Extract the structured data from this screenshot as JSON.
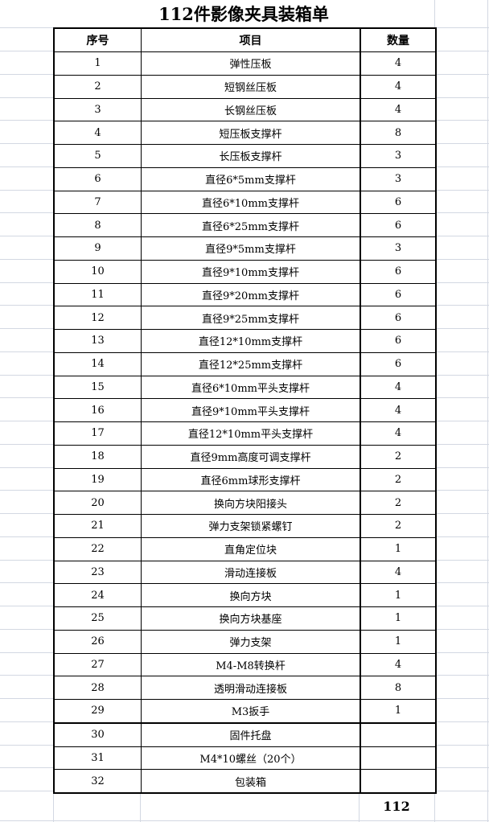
{
  "title": "112件影像夹具装箱单",
  "headers": {
    "index": "序号",
    "item": "项目",
    "qty": "数量"
  },
  "rows": [
    {
      "index": "1",
      "item": "弹性压板",
      "qty": "4"
    },
    {
      "index": "2",
      "item": "短钢丝压板",
      "qty": "4"
    },
    {
      "index": "3",
      "item": "长钢丝压板",
      "qty": "4"
    },
    {
      "index": "4",
      "item": "短压板支撑杆",
      "qty": "8"
    },
    {
      "index": "5",
      "item": "长压板支撑杆",
      "qty": "3"
    },
    {
      "index": "6",
      "item": "直径6*5mm支撑杆",
      "qty": "3"
    },
    {
      "index": "7",
      "item": "直径6*10mm支撑杆",
      "qty": "6"
    },
    {
      "index": "8",
      "item": "直径6*25mm支撑杆",
      "qty": "6"
    },
    {
      "index": "9",
      "item": "直径9*5mm支撑杆",
      "qty": "3"
    },
    {
      "index": "10",
      "item": "直径9*10mm支撑杆",
      "qty": "6"
    },
    {
      "index": "11",
      "item": "直径9*20mm支撑杆",
      "qty": "6"
    },
    {
      "index": "12",
      "item": "直径9*25mm支撑杆",
      "qty": "6"
    },
    {
      "index": "13",
      "item": "直径12*10mm支撑杆",
      "qty": "6"
    },
    {
      "index": "14",
      "item": "直径12*25mm支撑杆",
      "qty": "6"
    },
    {
      "index": "15",
      "item": "直径6*10mm平头支撑杆",
      "qty": "4"
    },
    {
      "index": "16",
      "item": "直径9*10mm平头支撑杆",
      "qty": "4"
    },
    {
      "index": "17",
      "item": "直径12*10mm平头支撑杆",
      "qty": "4"
    },
    {
      "index": "18",
      "item": "直径9mm高度可调支撑杆",
      "qty": "2"
    },
    {
      "index": "19",
      "item": "直径6mm球形支撑杆",
      "qty": "2"
    },
    {
      "index": "20",
      "item": "换向方块阳接头",
      "qty": "2"
    },
    {
      "index": "21",
      "item": "弹力支架锁紧螺钉",
      "qty": "2"
    },
    {
      "index": "22",
      "item": "直角定位块",
      "qty": "1"
    },
    {
      "index": "23",
      "item": "滑动连接板",
      "qty": "4"
    },
    {
      "index": "24",
      "item": "换向方块",
      "qty": "1"
    },
    {
      "index": "25",
      "item": "换向方块基座",
      "qty": "1"
    },
    {
      "index": "26",
      "item": "弹力支架",
      "qty": "1"
    },
    {
      "index": "27",
      "item": "M4-M8转换杆",
      "qty": "4"
    },
    {
      "index": "28",
      "item": "透明滑动连接板",
      "qty": "8"
    },
    {
      "index": "29",
      "item": "M3扳手",
      "qty": "1"
    },
    {
      "index": "30",
      "item": "固件托盘",
      "qty": ""
    },
    {
      "index": "31",
      "item": "M4*10螺丝（20个）",
      "qty": ""
    },
    {
      "index": "32",
      "item": "包装箱",
      "qty": ""
    }
  ],
  "total": "112"
}
